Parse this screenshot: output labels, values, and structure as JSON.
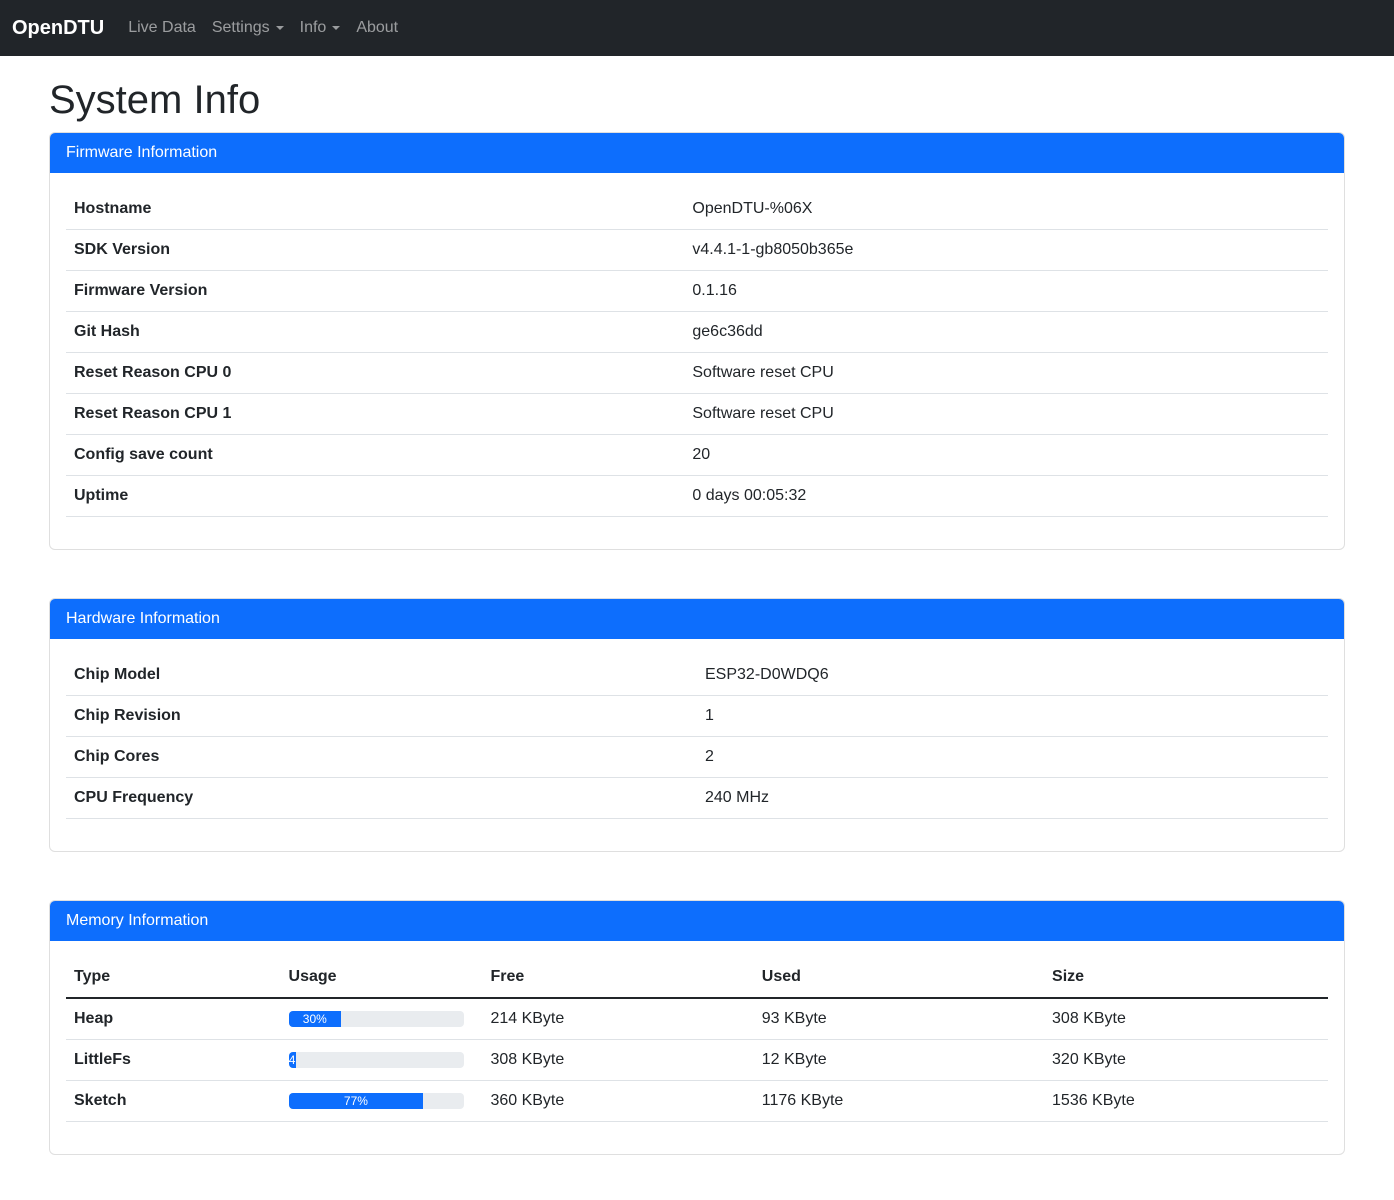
{
  "navbar": {
    "brand": "OpenDTU",
    "items": [
      {
        "label": "Live Data",
        "dropdown": false
      },
      {
        "label": "Settings",
        "dropdown": true
      },
      {
        "label": "Info",
        "dropdown": true
      },
      {
        "label": "About",
        "dropdown": false
      }
    ]
  },
  "page_title": "System Info",
  "colors": {
    "primary": "#0d6efd",
    "navbar_bg": "#212529",
    "progress_track": "#e9ecef",
    "table_border": "#dee2e6"
  },
  "firmware": {
    "title": "Firmware Information",
    "rows": [
      {
        "label": "Hostname",
        "value": "OpenDTU-%06X"
      },
      {
        "label": "SDK Version",
        "value": "v4.4.1-1-gb8050b365e"
      },
      {
        "label": "Firmware Version",
        "value": "0.1.16"
      },
      {
        "label": "Git Hash",
        "value": "ge6c36dd"
      },
      {
        "label": "Reset Reason CPU 0",
        "value": "Software reset CPU"
      },
      {
        "label": "Reset Reason CPU 1",
        "value": "Software reset CPU"
      },
      {
        "label": "Config save count",
        "value": "20"
      },
      {
        "label": "Uptime",
        "value": "0 days 00:05:32"
      }
    ]
  },
  "hardware": {
    "title": "Hardware Information",
    "rows": [
      {
        "label": "Chip Model",
        "value": "ESP32-D0WDQ6"
      },
      {
        "label": "Chip Revision",
        "value": "1"
      },
      {
        "label": "Chip Cores",
        "value": "2"
      },
      {
        "label": "CPU Frequency",
        "value": "240 MHz"
      }
    ]
  },
  "memory": {
    "title": "Memory Information",
    "columns": [
      "Type",
      "Usage",
      "Free",
      "Used",
      "Size"
    ],
    "rows": [
      {
        "type": "Heap",
        "usage_percent": 30,
        "usage_label": "30%",
        "free": "214 KByte",
        "used": "93 KByte",
        "size": "308 KByte"
      },
      {
        "type": "LittleFs",
        "usage_percent": 4,
        "usage_label": "4",
        "free": "308 KByte",
        "used": "12 KByte",
        "size": "320 KByte"
      },
      {
        "type": "Sketch",
        "usage_percent": 77,
        "usage_label": "77%",
        "free": "360 KByte",
        "used": "1176 KByte",
        "size": "1536 KByte"
      }
    ]
  }
}
